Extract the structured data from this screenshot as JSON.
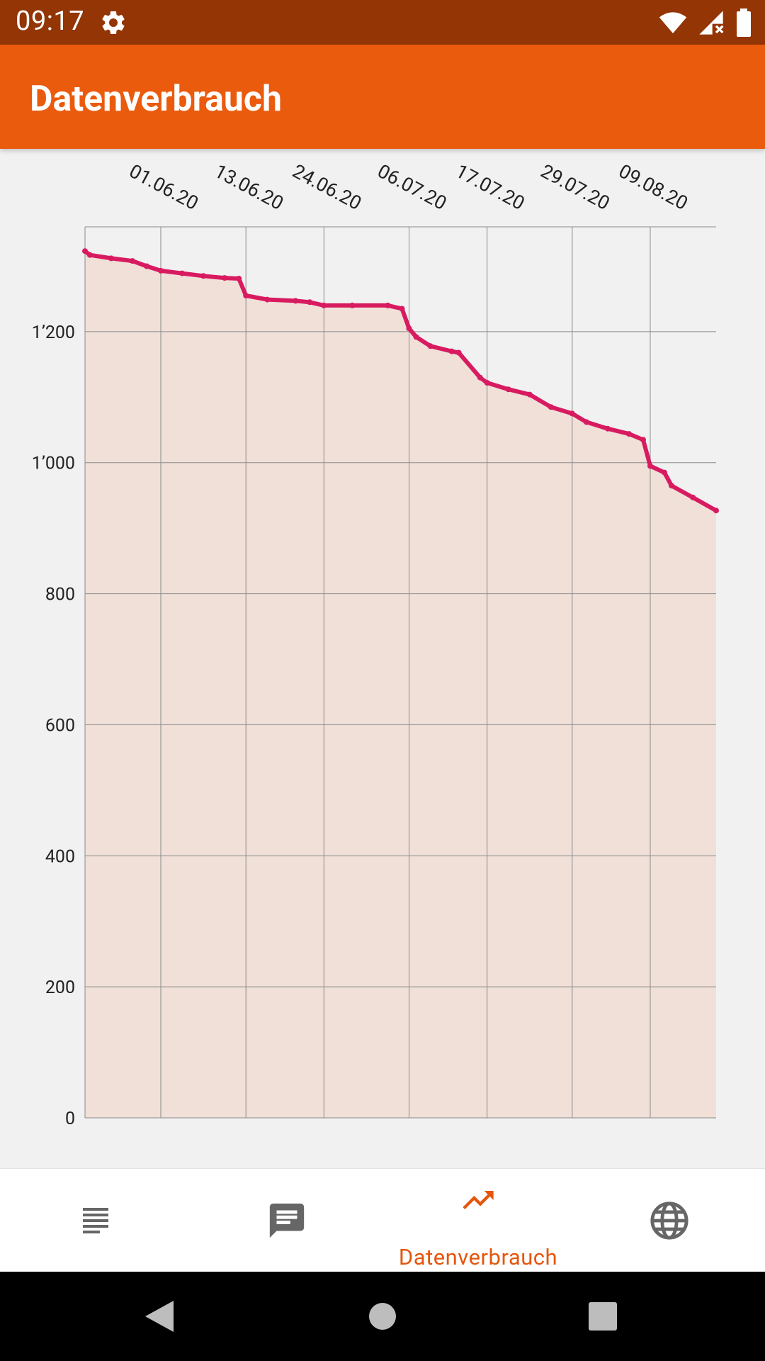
{
  "status_bar": {
    "time": "09:17",
    "icons": [
      "gear-icon",
      "wifi-icon",
      "signal-icon",
      "battery-icon"
    ]
  },
  "app_bar": {
    "title": "Datenverbrauch"
  },
  "chart_data": {
    "type": "area",
    "title": "",
    "xlabel": "",
    "ylabel": "",
    "x_tick_labels": [
      "01.06.20",
      "13.06.20",
      "24.06.20",
      "06.07.20",
      "17.07.20",
      "29.07.20",
      "09.08.20"
    ],
    "y_tick_labels": [
      "0",
      "200",
      "400",
      "600",
      "800",
      "1’000",
      "1’200"
    ],
    "ylim": [
      0,
      1360
    ],
    "grid": true,
    "line_color": "#d81b60",
    "fill_color": "#f0e0d8",
    "series": [
      {
        "x": [
          "20.05.20",
          "22.05.20",
          "25.05.20",
          "28.05.20",
          "30.05.20",
          "01.06.20",
          "04.06.20",
          "07.06.20",
          "10.06.20",
          "12.06.20",
          "13.06.20",
          "16.06.20",
          "20.06.20",
          "22.06.20",
          "24.06.20",
          "28.06.20",
          "03.07.20",
          "05.07.20",
          "06.07.20",
          "07.07.20",
          "09.07.20",
          "12.07.20",
          "13.07.20",
          "16.07.20",
          "17.07.20",
          "20.07.20",
          "23.07.20",
          "26.07.20",
          "29.07.20",
          "31.07.20",
          "03.08.20",
          "06.08.20",
          "08.08.20",
          "09.08.20",
          "11.08.20",
          "12.08.20",
          "15.08.20",
          "18.08.20"
        ],
        "values": [
          1323,
          1317,
          1312,
          1308,
          1300,
          1293,
          1289,
          1285,
          1282,
          1281,
          1255,
          1249,
          1247,
          1245,
          1240,
          1240,
          1240,
          1235,
          1205,
          1192,
          1178,
          1170,
          1168,
          1130,
          1122,
          1112,
          1104,
          1085,
          1075,
          1062,
          1052,
          1044,
          1035,
          995,
          985,
          965,
          947,
          927
        ]
      }
    ]
  },
  "bottom_nav": {
    "items": [
      {
        "name": "list-icon",
        "label": ""
      },
      {
        "name": "message-icon",
        "label": ""
      },
      {
        "name": "trending-icon",
        "label": "Datenverbrauch"
      },
      {
        "name": "globe-icon",
        "label": ""
      }
    ],
    "active_color": "#e4560e"
  }
}
